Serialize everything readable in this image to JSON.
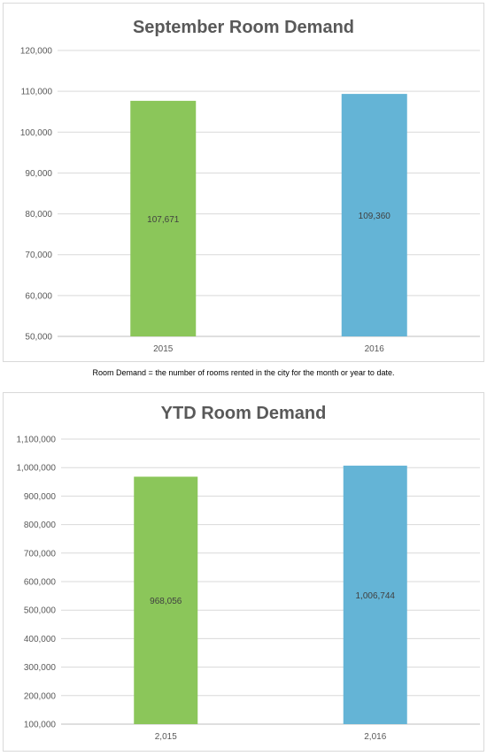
{
  "chart_data": [
    {
      "type": "bar",
      "title": "September Room Demand",
      "categories": [
        "2015",
        "2016"
      ],
      "values": [
        107671,
        109360
      ],
      "data_labels": [
        "107,671",
        "109,360"
      ],
      "bar_colors": [
        "#8bc65a",
        "#64b4d6"
      ],
      "ylim": [
        50000,
        120000
      ],
      "yticks": [
        50000,
        60000,
        70000,
        80000,
        90000,
        100000,
        110000,
        120000
      ],
      "ytick_labels": [
        "50,000",
        "60,000",
        "70,000",
        "80,000",
        "90,000",
        "100,000",
        "110,000",
        "120,000"
      ],
      "grid": true,
      "legend": "none"
    },
    {
      "type": "bar",
      "title": "YTD Room Demand",
      "categories": [
        "2,015",
        "2,016"
      ],
      "values": [
        968056,
        1006744
      ],
      "data_labels": [
        "968,056",
        "1,006,744"
      ],
      "bar_colors": [
        "#8bc65a",
        "#64b4d6"
      ],
      "ylim": [
        100000,
        1100000
      ],
      "yticks": [
        100000,
        200000,
        300000,
        400000,
        500000,
        600000,
        700000,
        800000,
        900000,
        1000000,
        1100000
      ],
      "ytick_labels": [
        "100,000",
        "200,000",
        "300,000",
        "400,000",
        "500,000",
        "600,000",
        "700,000",
        "800,000",
        "900,000",
        "1,000,000",
        "1,100,000"
      ],
      "grid": true,
      "legend": "none"
    }
  ],
  "note": "Room Demand = the number of rooms rented in the city for the month or year to date."
}
